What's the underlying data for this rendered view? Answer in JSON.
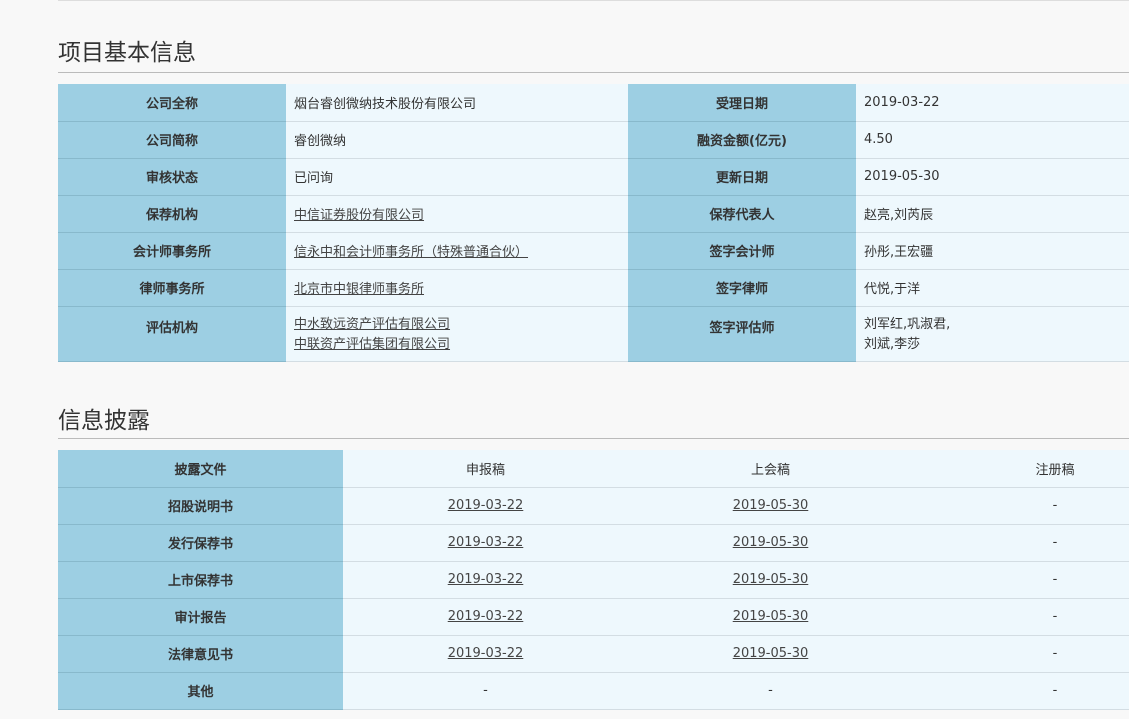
{
  "section1": {
    "title": "项目基本信息",
    "rows": [
      {
        "k1": "公司全称",
        "v1": "烟台睿创微纳技术股份有限公司",
        "k2": "受理日期",
        "v2": "2019-03-22"
      },
      {
        "k1": "公司简称",
        "v1": "睿创微纳",
        "k2": "融资金额(亿元)",
        "v2": "4.50"
      },
      {
        "k1": "审核状态",
        "v1": "已问询",
        "k2": "更新日期",
        "v2": "2019-05-30"
      },
      {
        "k1": "保荐机构",
        "v1": "中信证券股份有限公司",
        "k2": "保荐代表人",
        "v2": "赵亮,刘芮辰"
      },
      {
        "k1": "会计师事务所",
        "v1": "信永中和会计师事务所（特殊普通合伙）",
        "k2": "签字会计师",
        "v2": "孙彤,王宏疆"
      },
      {
        "k1": "律师事务所",
        "v1": "北京市中银律师事务所",
        "k2": "签字律师",
        "v2": "代悦,于洋"
      },
      {
        "k1": "评估机构",
        "v1a": "中水致远资产评估有限公司",
        "v1b": "中联资产评估集团有限公司",
        "k2": "签字评估师",
        "v2a": "刘军红,巩淑君,",
        "v2b": "刘斌,李莎"
      }
    ]
  },
  "section2": {
    "title": "信息披露",
    "headers": [
      "披露文件",
      "申报稿",
      "上会稿",
      "注册稿"
    ],
    "rows": [
      {
        "name": "招股说明书",
        "a": "2019-03-22",
        "b": "2019-05-30",
        "c": "-"
      },
      {
        "name": "发行保荐书",
        "a": "2019-03-22",
        "b": "2019-05-30",
        "c": "-"
      },
      {
        "name": "上市保荐书",
        "a": "2019-03-22",
        "b": "2019-05-30",
        "c": "-"
      },
      {
        "name": "审计报告",
        "a": "2019-03-22",
        "b": "2019-05-30",
        "c": "-"
      },
      {
        "name": "法律意见书",
        "a": "2019-03-22",
        "b": "2019-05-30",
        "c": "-"
      },
      {
        "name": "其他",
        "a": "-",
        "b": "-",
        "c": "-"
      }
    ]
  }
}
